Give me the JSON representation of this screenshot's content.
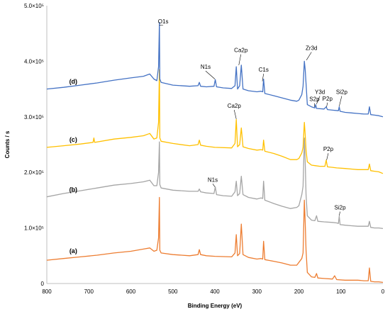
{
  "chart_data": {
    "type": "line",
    "xlabel": "Binding Energy (eV)",
    "ylabel": "Counts / s",
    "xlim": [
      800,
      0
    ],
    "ylim": [
      0,
      500000
    ],
    "x_ticks": [
      "800",
      "700",
      "600",
      "500",
      "400",
      "300",
      "200",
      "100",
      "0"
    ],
    "y_ticks": [
      "0",
      "1.0×10⁵",
      "2.0×10⁵",
      "3.0×10⁵",
      "4.0×10⁵",
      "5.0×10⁵"
    ],
    "grid": false,
    "legend": "none",
    "series": [
      {
        "name": "(a)",
        "color": "#ED7D31",
        "offset": 0,
        "points": [
          [
            800,
            42000
          ],
          [
            760,
            45000
          ],
          [
            720,
            48000
          ],
          [
            680,
            51000
          ],
          [
            640,
            55000
          ],
          [
            600,
            58000
          ],
          [
            570,
            62000
          ],
          [
            555,
            64000
          ],
          [
            545,
            58000
          ],
          [
            538,
            60000
          ],
          [
            534,
            82000
          ],
          [
            532,
            155000
          ],
          [
            531,
            60000
          ],
          [
            528,
            55000
          ],
          [
            500,
            52000
          ],
          [
            460,
            50000
          ],
          [
            440,
            52000
          ],
          [
            437,
            61000
          ],
          [
            434,
            52000
          ],
          [
            420,
            50000
          ],
          [
            400,
            49000
          ],
          [
            360,
            48000
          ],
          [
            352,
            55000
          ],
          [
            349,
            88000
          ],
          [
            346,
            50000
          ],
          [
            341,
            54000
          ],
          [
            337,
            107000
          ],
          [
            333,
            52000
          ],
          [
            320,
            47000
          ],
          [
            300,
            44000
          ],
          [
            290,
            45000
          ],
          [
            286,
            44000
          ],
          [
            284,
            76000
          ],
          [
            281,
            43000
          ],
          [
            260,
            40000
          ],
          [
            240,
            37000
          ],
          [
            220,
            33000
          ],
          [
            205,
            33000
          ],
          [
            200,
            38000
          ],
          [
            193,
            45000
          ],
          [
            190,
            55000
          ],
          [
            187,
            150000
          ],
          [
            185,
            110000
          ],
          [
            183,
            60000
          ],
          [
            180,
            20000
          ],
          [
            170,
            12000
          ],
          [
            162,
            11000
          ],
          [
            158,
            18000
          ],
          [
            155,
            10000
          ],
          [
            140,
            9000
          ],
          [
            120,
            8000
          ],
          [
            115,
            14000
          ],
          [
            110,
            7000
          ],
          [
            90,
            6000
          ],
          [
            75,
            6000
          ],
          [
            60,
            6000
          ],
          [
            45,
            5000
          ],
          [
            35,
            5000
          ],
          [
            32,
            28000
          ],
          [
            29,
            4000
          ],
          [
            20,
            3000
          ],
          [
            10,
            3000
          ],
          [
            0,
            2000
          ]
        ]
      },
      {
        "name": "(b)",
        "color": "#A5A5A5",
        "offset": 0,
        "points": [
          [
            800,
            156000
          ],
          [
            760,
            162000
          ],
          [
            720,
            167000
          ],
          [
            680,
            172000
          ],
          [
            640,
            177000
          ],
          [
            600,
            180000
          ],
          [
            570,
            183000
          ],
          [
            555,
            186000
          ],
          [
            545,
            176000
          ],
          [
            538,
            176000
          ],
          [
            534,
            200000
          ],
          [
            532,
            255000
          ],
          [
            531,
            178000
          ],
          [
            528,
            172000
          ],
          [
            500,
            168000
          ],
          [
            460,
            166000
          ],
          [
            440,
            166000
          ],
          [
            437,
            170000
          ],
          [
            434,
            165000
          ],
          [
            420,
            163000
          ],
          [
            402,
            162000
          ],
          [
            399,
            174000
          ],
          [
            396,
            160000
          ],
          [
            380,
            158000
          ],
          [
            360,
            157000
          ],
          [
            352,
            165000
          ],
          [
            349,
            184000
          ],
          [
            346,
            158000
          ],
          [
            341,
            162000
          ],
          [
            337,
            193000
          ],
          [
            333,
            160000
          ],
          [
            320,
            155000
          ],
          [
            300,
            152000
          ],
          [
            290,
            154000
          ],
          [
            286,
            153000
          ],
          [
            284,
            184000
          ],
          [
            281,
            150000
          ],
          [
            260,
            144000
          ],
          [
            240,
            139000
          ],
          [
            220,
            135000
          ],
          [
            205,
            137000
          ],
          [
            200,
            140000
          ],
          [
            193,
            160000
          ],
          [
            190,
            175000
          ],
          [
            187,
            262000
          ],
          [
            185,
            220000
          ],
          [
            183,
            160000
          ],
          [
            180,
            122000
          ],
          [
            170,
            114000
          ],
          [
            162,
            113000
          ],
          [
            158,
            122000
          ],
          [
            155,
            112000
          ],
          [
            140,
            111000
          ],
          [
            120,
            110000
          ],
          [
            110,
            109000
          ],
          [
            106,
            108000
          ],
          [
            104,
            121000
          ],
          [
            102,
            106000
          ],
          [
            90,
            105000
          ],
          [
            75,
            104000
          ],
          [
            60,
            103000
          ],
          [
            45,
            103000
          ],
          [
            35,
            103000
          ],
          [
            32,
            112000
          ],
          [
            29,
            101000
          ],
          [
            20,
            100000
          ],
          [
            10,
            100000
          ],
          [
            0,
            99000
          ]
        ]
      },
      {
        "name": "(c)",
        "color": "#FFC000",
        "offset": 0,
        "points": [
          [
            800,
            245000
          ],
          [
            760,
            248000
          ],
          [
            720,
            251000
          ],
          [
            690,
            254000
          ],
          [
            688,
            262000
          ],
          [
            686,
            254000
          ],
          [
            640,
            260000
          ],
          [
            600,
            263000
          ],
          [
            570,
            266000
          ],
          [
            555,
            270000
          ],
          [
            545,
            260000
          ],
          [
            538,
            262000
          ],
          [
            534,
            290000
          ],
          [
            532,
            385000
          ],
          [
            531,
            262000
          ],
          [
            528,
            256000
          ],
          [
            500,
            252000
          ],
          [
            460,
            248000
          ],
          [
            440,
            250000
          ],
          [
            437,
            258000
          ],
          [
            434,
            249000
          ],
          [
            420,
            247000
          ],
          [
            400,
            245000
          ],
          [
            360,
            244000
          ],
          [
            352,
            252000
          ],
          [
            349,
            295000
          ],
          [
            346,
            246000
          ],
          [
            341,
            250000
          ],
          [
            337,
            280000
          ],
          [
            333,
            246000
          ],
          [
            320,
            243000
          ],
          [
            300,
            240000
          ],
          [
            290,
            241000
          ],
          [
            286,
            240000
          ],
          [
            284,
            258000
          ],
          [
            281,
            238000
          ],
          [
            260,
            234000
          ],
          [
            240,
            229000
          ],
          [
            220,
            223000
          ],
          [
            205,
            223000
          ],
          [
            200,
            225000
          ],
          [
            193,
            235000
          ],
          [
            190,
            245000
          ],
          [
            187,
            290000
          ],
          [
            185,
            268000
          ],
          [
            183,
            240000
          ],
          [
            180,
            219000
          ],
          [
            170,
            213000
          ],
          [
            160,
            212000
          ],
          [
            150,
            211000
          ],
          [
            138,
            211000
          ],
          [
            135,
            222000
          ],
          [
            132,
            210000
          ],
          [
            120,
            209000
          ],
          [
            110,
            208000
          ],
          [
            90,
            207000
          ],
          [
            75,
            206000
          ],
          [
            60,
            205000
          ],
          [
            45,
            205000
          ],
          [
            35,
            205000
          ],
          [
            32,
            215000
          ],
          [
            29,
            203000
          ],
          [
            20,
            202000
          ],
          [
            10,
            201000
          ],
          [
            0,
            198000
          ]
        ]
      },
      {
        "name": "(d)",
        "color": "#4472C4",
        "offset": 0,
        "points": [
          [
            800,
            350000
          ],
          [
            760,
            353000
          ],
          [
            720,
            357000
          ],
          [
            680,
            361000
          ],
          [
            640,
            366000
          ],
          [
            600,
            370000
          ],
          [
            570,
            373000
          ],
          [
            555,
            377000
          ],
          [
            545,
            368000
          ],
          [
            538,
            365000
          ],
          [
            534,
            390000
          ],
          [
            532,
            470000
          ],
          [
            531,
            368000
          ],
          [
            528,
            362000
          ],
          [
            500,
            357000
          ],
          [
            460,
            355000
          ],
          [
            440,
            356000
          ],
          [
            437,
            362000
          ],
          [
            434,
            355000
          ],
          [
            420,
            354000
          ],
          [
            402,
            355000
          ],
          [
            399,
            367000
          ],
          [
            396,
            354000
          ],
          [
            380,
            352000
          ],
          [
            360,
            351000
          ],
          [
            352,
            356000
          ],
          [
            349,
            390000
          ],
          [
            346,
            350000
          ],
          [
            341,
            356000
          ],
          [
            337,
            393000
          ],
          [
            333,
            350000
          ],
          [
            320,
            347000
          ],
          [
            300,
            345000
          ],
          [
            290,
            346000
          ],
          [
            286,
            345000
          ],
          [
            284,
            368000
          ],
          [
            281,
            342000
          ],
          [
            260,
            338000
          ],
          [
            240,
            334000
          ],
          [
            220,
            330000
          ],
          [
            205,
            328000
          ],
          [
            200,
            330000
          ],
          [
            193,
            340000
          ],
          [
            190,
            355000
          ],
          [
            187,
            400000
          ],
          [
            185,
            385000
          ],
          [
            183,
            360000
          ],
          [
            180,
            322000
          ],
          [
            170,
            318000
          ],
          [
            162,
            316000
          ],
          [
            160,
            322000
          ],
          [
            158,
            315000
          ],
          [
            140,
            314000
          ],
          [
            135,
            318000
          ],
          [
            132,
            313000
          ],
          [
            120,
            312000
          ],
          [
            106,
            311000
          ],
          [
            104,
            318000
          ],
          [
            102,
            310000
          ],
          [
            90,
            308000
          ],
          [
            75,
            307000
          ],
          [
            60,
            306000
          ],
          [
            45,
            305000
          ],
          [
            35,
            305000
          ],
          [
            32,
            318000
          ],
          [
            29,
            304000
          ],
          [
            20,
            303000
          ],
          [
            10,
            302000
          ],
          [
            0,
            300000
          ]
        ]
      }
    ],
    "annotations": [
      {
        "text": "O1s",
        "x": 523,
        "y": 467000,
        "line_to": [
          532,
          465000
        ]
      },
      {
        "text": "N1s",
        "x": 422,
        "y": 385000,
        "line_to": [
          400,
          368000
        ]
      },
      {
        "text": "Ca2p",
        "x": 338,
        "y": 415000,
        "line_to": [
          343,
          393000
        ]
      },
      {
        "text": "C1s",
        "x": 284,
        "y": 380000,
        "line_to": [
          287,
          364000
        ]
      },
      {
        "text": "Zr3d",
        "x": 170,
        "y": 419000,
        "line_to": [
          182,
          402000
        ]
      },
      {
        "text": "Y3d",
        "x": 150,
        "y": 340000,
        "line_to": [
          158,
          323000
        ]
      },
      {
        "text": "S2p",
        "x": 163,
        "y": 327000,
        "line_to": [
          163,
          318000
        ]
      },
      {
        "text": "P2p",
        "x": 132,
        "y": 328000,
        "line_to": [
          134,
          318000
        ]
      },
      {
        "text": "Si2p",
        "x": 98,
        "y": 340000,
        "line_to": [
          104,
          319000
        ]
      },
      {
        "text": "Ca2p",
        "x": 354,
        "y": 315000,
        "line_to": [
          349,
          296000
        ]
      },
      {
        "text": "P2p",
        "x": 130,
        "y": 237000,
        "line_to": [
          134,
          222000
        ]
      },
      {
        "text": "N1s",
        "x": 405,
        "y": 182000,
        "line_to": [
          400,
          174000
        ]
      },
      {
        "text": "Si2p",
        "x": 102,
        "y": 132000,
        "line_to": [
          104,
          122000
        ]
      }
    ],
    "series_labels": [
      {
        "text": "(d)",
        "x": 737,
        "y": 360000
      },
      {
        "text": "(c)",
        "x": 737,
        "y": 255000
      },
      {
        "text": "(b)",
        "x": 737,
        "y": 165000
      },
      {
        "text": "(a)",
        "x": 737,
        "y": 55000
      }
    ]
  }
}
